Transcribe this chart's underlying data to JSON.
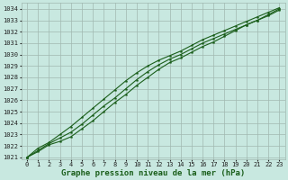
{
  "title": "Graphe pression niveau de la mer (hPa)",
  "xlabel": "Graphe pression niveau de la mer (hPa)",
  "xlim": [
    -0.5,
    23.5
  ],
  "ylim": [
    1020.8,
    1034.5
  ],
  "yticks": [
    1021,
    1022,
    1023,
    1024,
    1025,
    1026,
    1027,
    1028,
    1029,
    1030,
    1031,
    1032,
    1033,
    1034
  ],
  "xticks": [
    0,
    1,
    2,
    3,
    4,
    5,
    6,
    7,
    8,
    9,
    10,
    11,
    12,
    13,
    14,
    15,
    16,
    17,
    18,
    19,
    20,
    21,
    22,
    23
  ],
  "bg_color": "#c8e8e0",
  "grid_color": "#a0b8b0",
  "line_color": "#1a5e1a",
  "series": [
    [
      1021.0,
      1021.5,
      1022.1,
      1022.4,
      1022.8,
      1023.5,
      1024.2,
      1025.0,
      1025.8,
      1026.5,
      1027.3,
      1028.0,
      1028.7,
      1029.3,
      1029.7,
      1030.2,
      1030.7,
      1031.1,
      1031.6,
      1032.1,
      1032.6,
      1033.0,
      1033.5,
      1034.0
    ],
    [
      1021.0,
      1021.6,
      1022.2,
      1022.7,
      1023.2,
      1023.9,
      1024.7,
      1025.5,
      1026.2,
      1027.0,
      1027.8,
      1028.5,
      1029.1,
      1029.6,
      1030.0,
      1030.5,
      1031.0,
      1031.4,
      1031.8,
      1032.2,
      1032.6,
      1033.0,
      1033.4,
      1033.9
    ],
    [
      1021.0,
      1021.8,
      1022.3,
      1023.0,
      1023.7,
      1024.5,
      1025.3,
      1026.1,
      1026.9,
      1027.7,
      1028.4,
      1029.0,
      1029.5,
      1029.9,
      1030.3,
      1030.8,
      1031.3,
      1031.7,
      1032.1,
      1032.5,
      1032.9,
      1033.3,
      1033.7,
      1034.1
    ]
  ],
  "title_fontsize": 6.5,
  "tick_fontsize": 5.0,
  "line_width": 0.8,
  "marker_size": 2.0
}
